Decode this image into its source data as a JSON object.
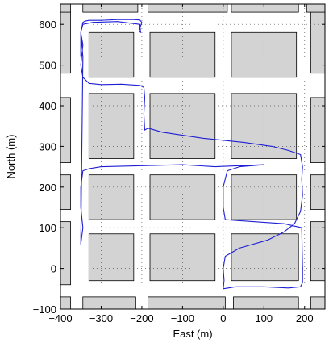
{
  "chart_data": {
    "type": "line",
    "title": "",
    "xlabel": "East (m)",
    "ylabel": "North (m)",
    "xlim": [
      -400,
      250
    ],
    "ylim": [
      -100,
      650
    ],
    "x_ticks": [
      -400,
      -300,
      -200,
      -100,
      0,
      100,
      200
    ],
    "y_ticks": [
      -100,
      0,
      100,
      200,
      300,
      400,
      500,
      600
    ],
    "x_tick_labels": [
      "−400",
      "−300",
      "−200",
      "−100",
      "0",
      "100",
      "200"
    ],
    "y_tick_labels": [
      "−100",
      "0",
      "100",
      "200",
      "300",
      "400",
      "500",
      "600"
    ],
    "grid": "dotted",
    "colors": {
      "blocks": "#d3d3d3",
      "block_edge": "#000000",
      "trajectory": "#1f1fd6",
      "reference": "#2a2ad8",
      "grid": "#555555"
    },
    "blocks": [
      {
        "x": [
          -400,
          -375
        ],
        "y": [
          -100,
          -70
        ]
      },
      {
        "x": [
          -345,
          -215
        ],
        "y": [
          -100,
          -70
        ]
      },
      {
        "x": [
          -185,
          5
        ],
        "y": [
          -100,
          -70
        ]
      },
      {
        "x": [
          25,
          185
        ],
        "y": [
          -100,
          -70
        ]
      },
      {
        "x": [
          215,
          250
        ],
        "y": [
          -100,
          -70
        ]
      },
      {
        "x": [
          -400,
          -375
        ],
        "y": [
          -40,
          115
        ]
      },
      {
        "x": [
          -330,
          -220
        ],
        "y": [
          -30,
          85
        ]
      },
      {
        "x": [
          -180,
          -20
        ],
        "y": [
          -30,
          85
        ]
      },
      {
        "x": [
          20,
          185
        ],
        "y": [
          -30,
          85
        ]
      },
      {
        "x": [
          215,
          250
        ],
        "y": [
          -30,
          115
        ]
      },
      {
        "x": [
          -400,
          -375
        ],
        "y": [
          145,
          230
        ]
      },
      {
        "x": [
          -330,
          -220
        ],
        "y": [
          120,
          230
        ]
      },
      {
        "x": [
          -180,
          -20
        ],
        "y": [
          120,
          230
        ]
      },
      {
        "x": [
          20,
          180
        ],
        "y": [
          120,
          230
        ]
      },
      {
        "x": [
          215,
          250
        ],
        "y": [
          145,
          230
        ]
      },
      {
        "x": [
          -400,
          -375
        ],
        "y": [
          260,
          420
        ]
      },
      {
        "x": [
          -330,
          -220
        ],
        "y": [
          270,
          430
        ]
      },
      {
        "x": [
          -180,
          -20
        ],
        "y": [
          270,
          430
        ]
      },
      {
        "x": [
          20,
          180
        ],
        "y": [
          270,
          430
        ]
      },
      {
        "x": [
          215,
          250
        ],
        "y": [
          260,
          420
        ]
      },
      {
        "x": [
          -400,
          -375
        ],
        "y": [
          480,
          630
        ]
      },
      {
        "x": [
          -330,
          -220
        ],
        "y": [
          470,
          580
        ]
      },
      {
        "x": [
          -180,
          -20
        ],
        "y": [
          470,
          580
        ]
      },
      {
        "x": [
          20,
          180
        ],
        "y": [
          470,
          580
        ]
      },
      {
        "x": [
          215,
          250
        ],
        "y": [
          480,
          630
        ]
      },
      {
        "x": [
          -400,
          -375
        ],
        "y": [
          630,
          650
        ]
      },
      {
        "x": [
          -345,
          -210
        ],
        "y": [
          630,
          650
        ]
      },
      {
        "x": [
          -185,
          10
        ],
        "y": [
          630,
          650
        ]
      },
      {
        "x": [
          20,
          185
        ],
        "y": [
          630,
          650
        ]
      },
      {
        "x": [
          205,
          250
        ],
        "y": [
          630,
          650
        ]
      }
    ],
    "series": [
      {
        "x": [
          -350,
          -350,
          -345,
          -340,
          -330,
          -300,
          -260,
          -240,
          -220,
          -205,
          -200,
          -205,
          -207,
          -203,
          -205,
          -260,
          -320,
          -345,
          -350,
          -345,
          -350,
          -345,
          -330,
          -300,
          -250,
          -205,
          -195,
          -193,
          -195,
          -193,
          -185,
          -150,
          -50,
          50,
          120,
          160,
          190,
          195,
          193,
          195,
          190,
          175,
          150,
          110,
          40,
          5,
          0,
          2,
          0,
          30,
          100,
          160,
          190,
          195,
          195,
          193,
          150,
          30,
          5,
          0,
          0,
          10,
          40,
          100,
          -20,
          -100,
          -300,
          -330,
          -345,
          -350,
          -350,
          -345,
          -350,
          -345,
          -350
        ],
        "y": [
          520,
          580,
          605,
          608,
          610,
          610,
          612,
          612,
          612,
          611,
          605,
          590,
          585,
          580,
          600,
          607,
          605,
          600,
          580,
          550,
          500,
          470,
          455,
          452,
          453,
          450,
          445,
          420,
          380,
          340,
          345,
          335,
          320,
          310,
          300,
          290,
          280,
          250,
          220,
          180,
          140,
          110,
          90,
          70,
          50,
          30,
          0,
          -30,
          -50,
          -45,
          -45,
          -48,
          -45,
          -35,
          0,
          100,
          110,
          118,
          120,
          150,
          200,
          240,
          250,
          255,
          250,
          255,
          250,
          245,
          240,
          200,
          150,
          100,
          60,
          520,
          580
        ]
      }
    ]
  }
}
